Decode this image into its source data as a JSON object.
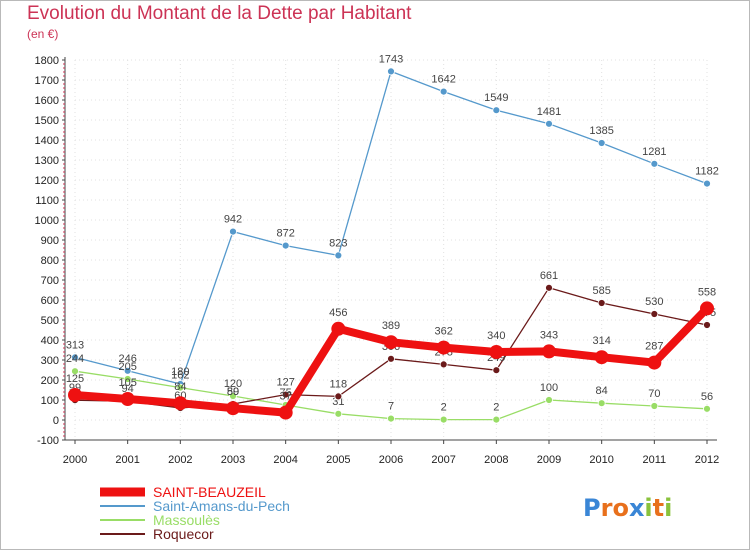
{
  "header": {
    "title": "Evolution du Montant de la Dette par Habitant",
    "subtitle": "(en €)"
  },
  "logo": {
    "letters": [
      {
        "char": "P",
        "color": "#3a86d6"
      },
      {
        "char": "r",
        "color": "#e8701c"
      },
      {
        "char": "o",
        "color": "#e8701c"
      },
      {
        "char": "x",
        "color": "#3a86d6"
      },
      {
        "char": "i",
        "color": "#8ac23c"
      },
      {
        "char": "t",
        "color": "#e8701c"
      },
      {
        "char": "i",
        "color": "#8ac23c"
      }
    ]
  },
  "chart_data": {
    "type": "line",
    "title": "Evolution du Montant de la Dette par Habitant",
    "subtitle": "(en €)",
    "xlabel": "",
    "ylabel": "",
    "categories": [
      "2000",
      "2001",
      "2002",
      "2003",
      "2004",
      "2005",
      "2006",
      "2007",
      "2008",
      "2009",
      "2010",
      "2011",
      "2012"
    ],
    "ylim": [
      -100,
      1800
    ],
    "yticks": [
      -100,
      0,
      100,
      200,
      300,
      400,
      500,
      600,
      700,
      800,
      900,
      1000,
      1100,
      1200,
      1300,
      1400,
      1500,
      1600,
      1700,
      1800
    ],
    "legend_position": "bottom-left",
    "series": [
      {
        "name": "SAINT-BEAUZEIL",
        "color": "#ee1111",
        "emphasis": true,
        "values": [
          125,
          105,
          84,
          59,
          37,
          456,
          389,
          362,
          340,
          343,
          314,
          287,
          558
        ]
      },
      {
        "name": "Saint-Amans-du-Pech",
        "color": "#5599cc",
        "emphasis": false,
        "values": [
          313,
          246,
          180,
          942,
          872,
          823,
          1743,
          1642,
          1549,
          1481,
          1385,
          1281,
          1182
        ]
      },
      {
        "name": "Massoulès",
        "color": "#99dd66",
        "emphasis": false,
        "values": [
          244,
          205,
          162,
          120,
          75,
          31,
          7,
          2,
          2,
          100,
          84,
          70,
          56
        ]
      },
      {
        "name": "Roquecor",
        "color": "#6b1a1a",
        "emphasis": false,
        "values": [
          99,
          94,
          60,
          80,
          127,
          118,
          306,
          278,
          249,
          661,
          585,
          530,
          475
        ]
      }
    ]
  }
}
